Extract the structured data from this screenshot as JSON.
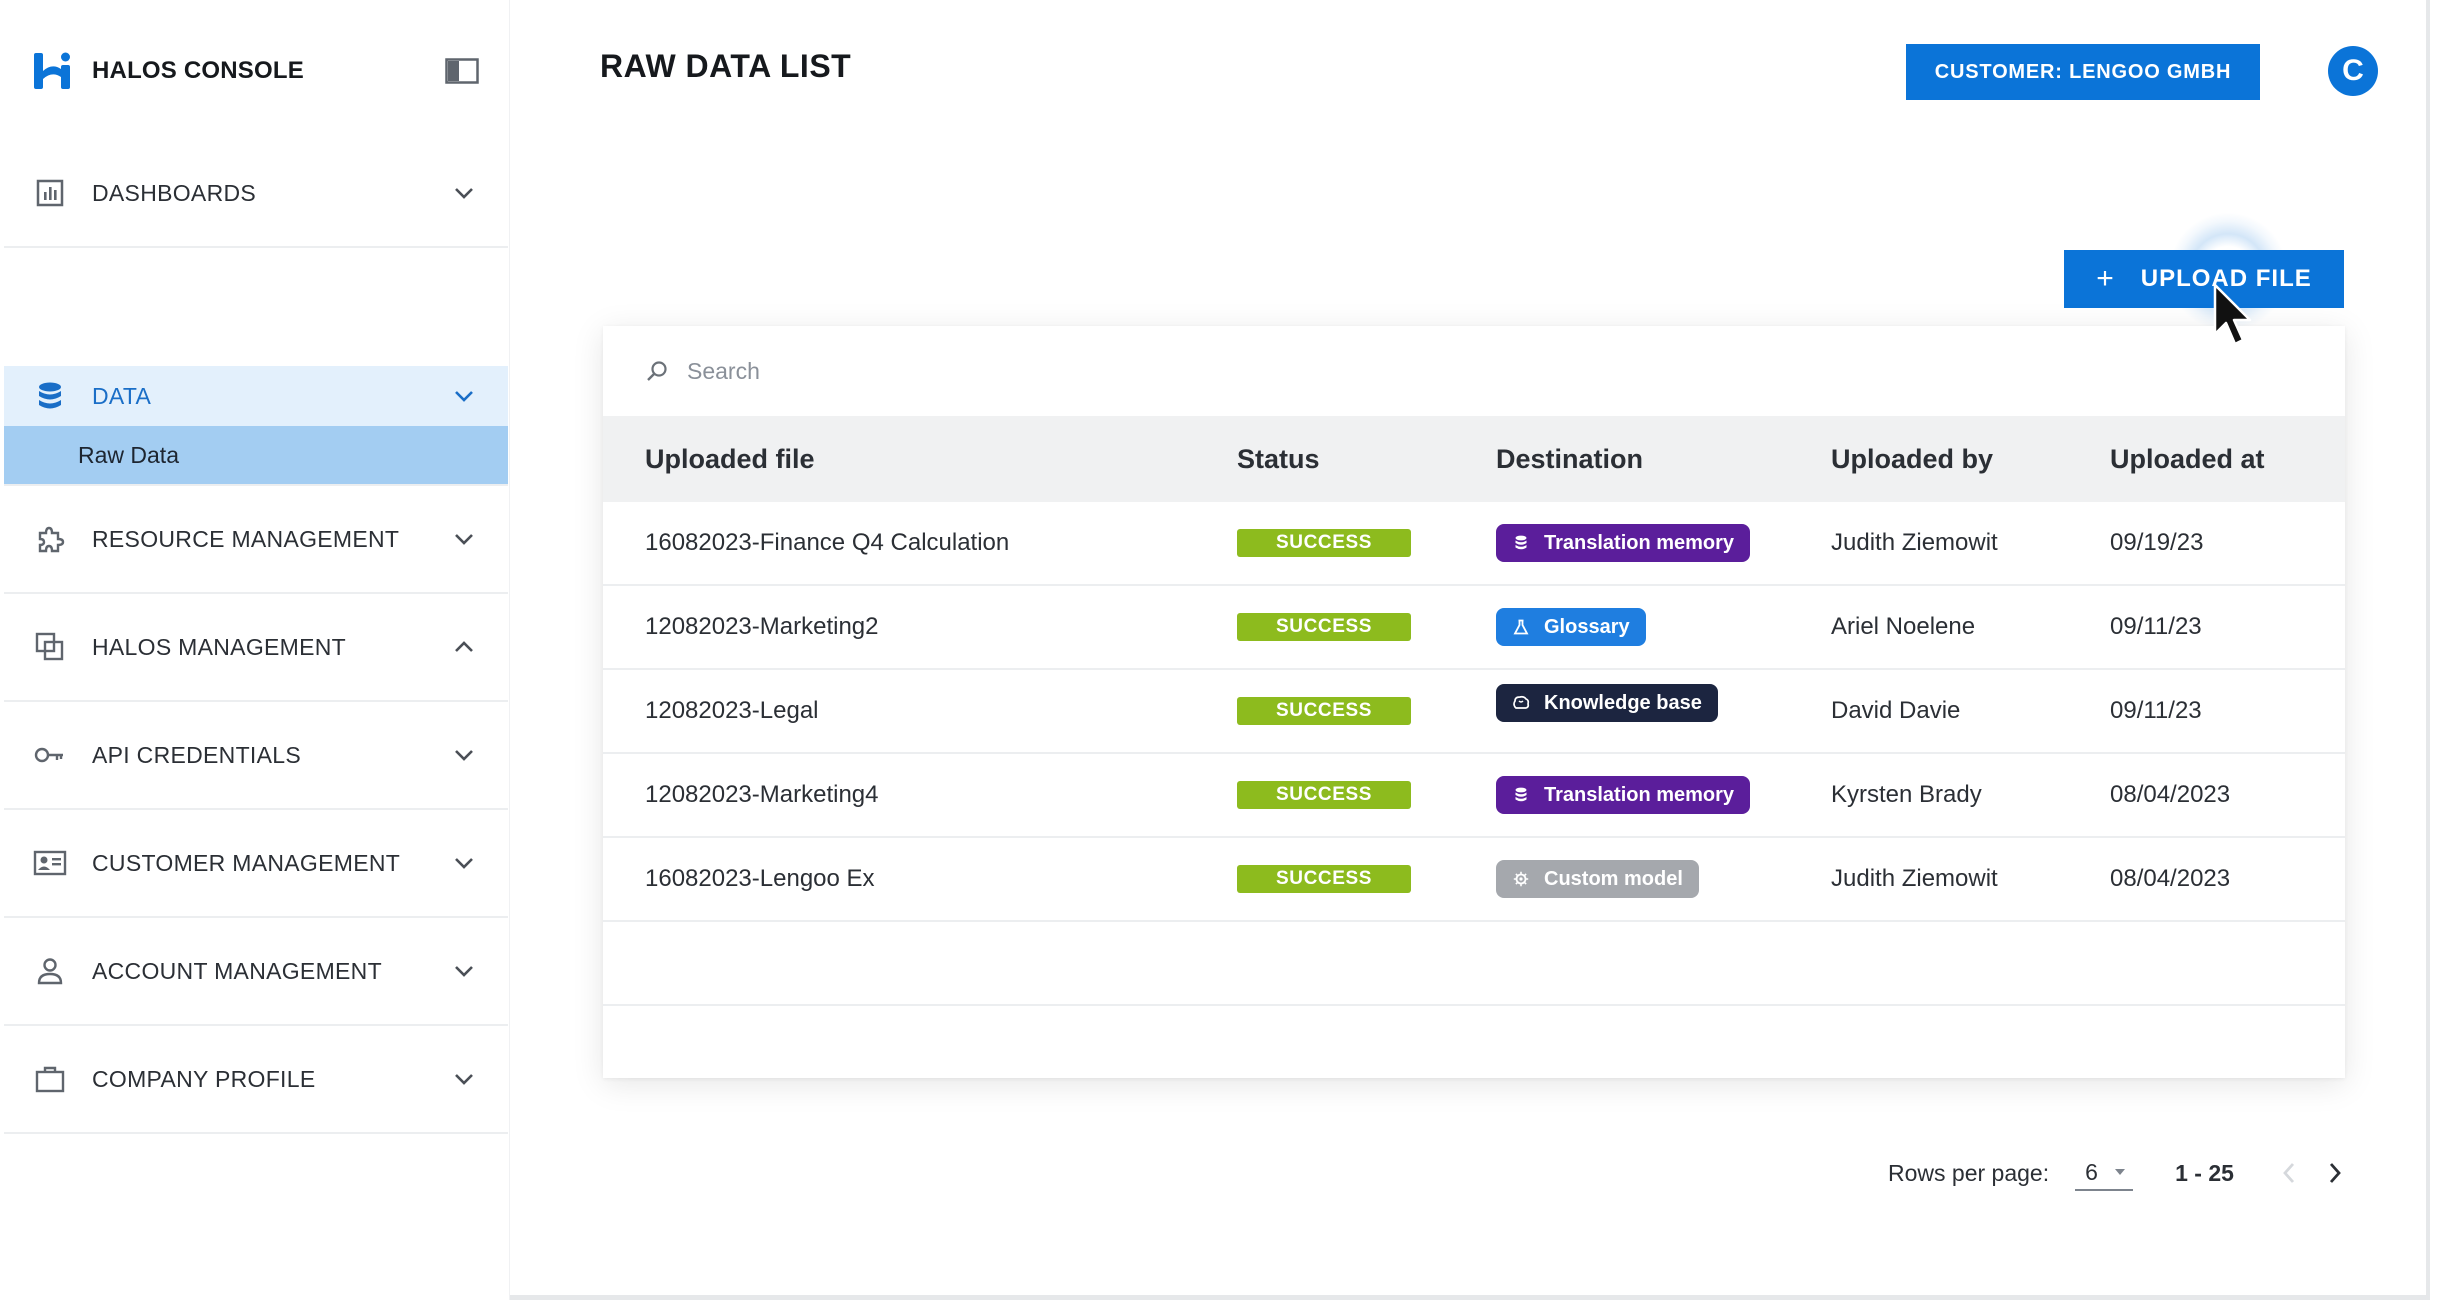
{
  "brand": {
    "name": "HALOS CONSOLE"
  },
  "header": {
    "title": "RAW DATA LIST",
    "customer_button": "CUSTOMER: LENGOO GMBH",
    "avatar_initial": "C"
  },
  "sidebar": {
    "items": [
      {
        "label": "DASHBOARDS",
        "icon": "bar-chart-icon",
        "chevron": "down"
      },
      {
        "label": "DATA",
        "icon": "database-icon",
        "chevron": "down",
        "active": true,
        "sub": [
          "Raw Data"
        ]
      },
      {
        "label": "RESOURCE MANAGEMENT",
        "icon": "puzzle-icon",
        "chevron": "down"
      },
      {
        "label": "HALOS MANAGEMENT",
        "icon": "layers-icon",
        "chevron": "up"
      },
      {
        "label": "API CREDENTIALS",
        "icon": "key-icon",
        "chevron": "down"
      },
      {
        "label": "CUSTOMER MANAGEMENT",
        "icon": "id-card-icon",
        "chevron": "down"
      },
      {
        "label": "ACCOUNT MANAGEMENT",
        "icon": "user-icon",
        "chevron": "down"
      },
      {
        "label": "COMPANY PROFILE",
        "icon": "briefcase-icon",
        "chevron": "down"
      }
    ]
  },
  "upload": {
    "label": "UPLOAD FILE"
  },
  "search": {
    "placeholder": "Search"
  },
  "table": {
    "columns": [
      "Uploaded file",
      "Status",
      "Destination",
      "Uploaded by",
      "Uploaded at"
    ],
    "rows": [
      {
        "file": "16082023-Finance Q4 Calculation",
        "status": "SUCCESS",
        "destination": "Translation memory",
        "dest_color": "#5b1e9b",
        "dest_icon": "database-icon",
        "by": "Judith Ziemowit",
        "at": "09/19/23"
      },
      {
        "file": "12082023-Marketing2",
        "status": "SUCCESS",
        "destination": "Glossary",
        "dest_color": "#1f7ee0",
        "dest_icon": "flask-icon",
        "by": "Ariel Noelene",
        "at": "09/11/23"
      },
      {
        "file": "12082023-Legal",
        "status": "SUCCESS",
        "destination": "Knowledge base",
        "dest_color": "#1c2540",
        "dest_icon": "brain-icon",
        "by": "David Davie",
        "at": "09/11/23"
      },
      {
        "file": "12082023-Marketing4",
        "status": "SUCCESS",
        "destination": "Translation memory",
        "dest_color": "#5b1e9b",
        "dest_icon": "database-icon",
        "by": "Kyrsten Brady",
        "at": "08/04/2023"
      },
      {
        "file": "16082023-Lengoo Ex",
        "status": "SUCCESS",
        "destination": "Custom model",
        "dest_color": "#a5a8ad",
        "dest_icon": "gear-icon",
        "by": "Judith Ziemowit",
        "at": "08/04/2023"
      }
    ]
  },
  "pagination": {
    "rows_label": "Rows per page:",
    "rows_value": "6",
    "range": "1 - 25"
  },
  "colors": {
    "accent": "#0b74d8",
    "success": "#8dbb1e",
    "active_bg": "#e3f0fc",
    "active_sub_bg": "#a3cdf2"
  }
}
